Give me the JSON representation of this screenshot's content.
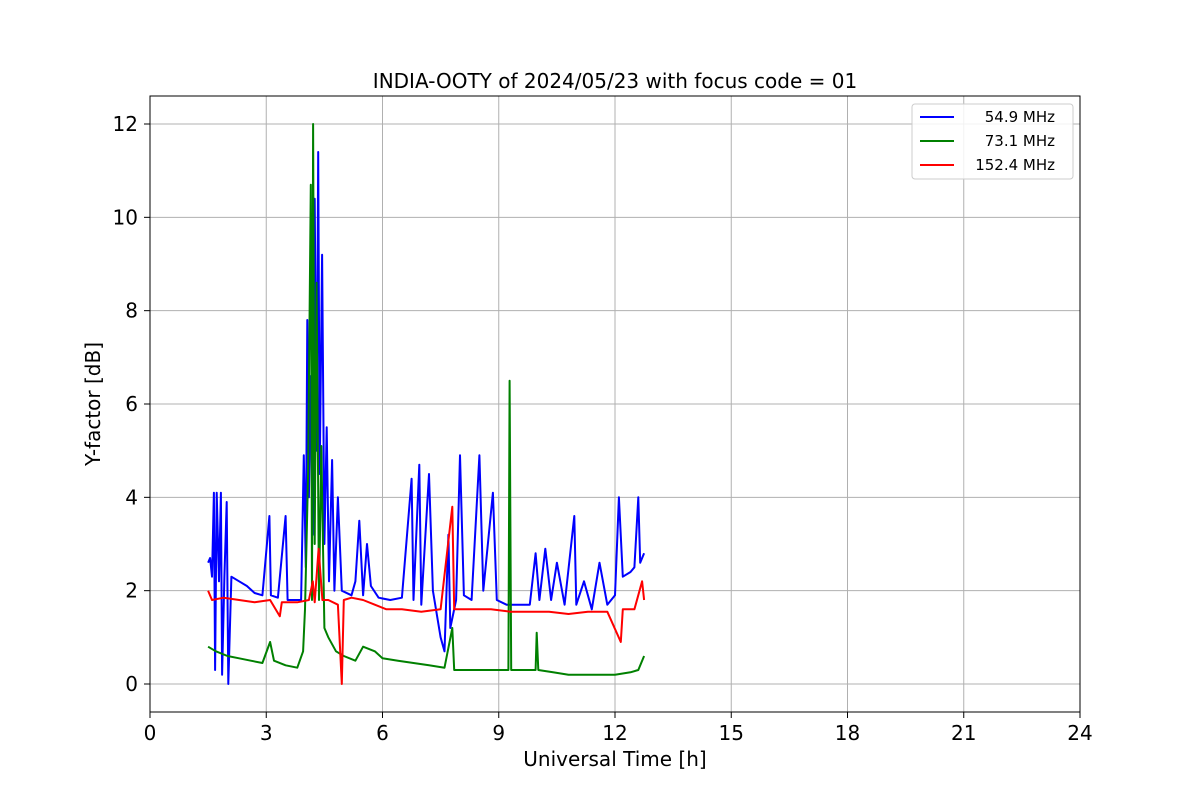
{
  "chart_data": {
    "type": "line",
    "title": "INDIA-OOTY of 2024/05/23 with focus code = 01",
    "xlabel": "Universal Time [h]",
    "ylabel": "Y-factor [dB]",
    "xlim": [
      0,
      24
    ],
    "ylim": [
      -0.6,
      12.6
    ],
    "xticks": [
      0,
      3,
      6,
      9,
      12,
      15,
      18,
      21,
      24
    ],
    "yticks": [
      0,
      2,
      4,
      6,
      8,
      10,
      12
    ],
    "grid": true,
    "legend_position": "top-right",
    "series": [
      {
        "name": "54.9 MHz",
        "color": "#0000ff",
        "points": [
          [
            1.5,
            2.6
          ],
          [
            1.55,
            2.7
          ],
          [
            1.6,
            2.3
          ],
          [
            1.65,
            4.1
          ],
          [
            1.68,
            0.3
          ],
          [
            1.72,
            4.1
          ],
          [
            1.78,
            2.2
          ],
          [
            1.83,
            4.1
          ],
          [
            1.86,
            0.2
          ],
          [
            1.92,
            2.3
          ],
          [
            1.98,
            3.9
          ],
          [
            2.02,
            0.0
          ],
          [
            2.1,
            2.3
          ],
          [
            2.3,
            2.2
          ],
          [
            2.5,
            2.1
          ],
          [
            2.7,
            1.95
          ],
          [
            2.9,
            1.9
          ],
          [
            3.08,
            3.6
          ],
          [
            3.12,
            1.9
          ],
          [
            3.3,
            1.85
          ],
          [
            3.5,
            3.6
          ],
          [
            3.55,
            1.8
          ],
          [
            3.7,
            1.8
          ],
          [
            3.9,
            1.8
          ],
          [
            3.97,
            4.9
          ],
          [
            4.02,
            2.5
          ],
          [
            4.06,
            7.8
          ],
          [
            4.1,
            4.0
          ],
          [
            4.15,
            6.6
          ],
          [
            4.2,
            3.2
          ],
          [
            4.25,
            10.4
          ],
          [
            4.3,
            5.0
          ],
          [
            4.34,
            11.4
          ],
          [
            4.38,
            4.5
          ],
          [
            4.44,
            9.2
          ],
          [
            4.5,
            3.0
          ],
          [
            4.56,
            5.5
          ],
          [
            4.62,
            2.2
          ],
          [
            4.7,
            4.8
          ],
          [
            4.76,
            2.0
          ],
          [
            4.85,
            4.0
          ],
          [
            4.95,
            2.0
          ],
          [
            5.2,
            1.9
          ],
          [
            5.3,
            2.2
          ],
          [
            5.4,
            3.5
          ],
          [
            5.5,
            1.9
          ],
          [
            5.6,
            3.0
          ],
          [
            5.7,
            2.1
          ],
          [
            5.9,
            1.85
          ],
          [
            6.2,
            1.8
          ],
          [
            6.5,
            1.85
          ],
          [
            6.75,
            4.4
          ],
          [
            6.8,
            1.8
          ],
          [
            6.95,
            4.7
          ],
          [
            7.0,
            1.7
          ],
          [
            7.2,
            4.5
          ],
          [
            7.3,
            2.0
          ],
          [
            7.5,
            1.0
          ],
          [
            7.6,
            0.7
          ],
          [
            7.7,
            3.2
          ],
          [
            7.75,
            1.2
          ],
          [
            7.9,
            1.8
          ],
          [
            8.0,
            4.9
          ],
          [
            8.1,
            1.9
          ],
          [
            8.3,
            1.8
          ],
          [
            8.5,
            4.9
          ],
          [
            8.6,
            2.0
          ],
          [
            8.85,
            4.1
          ],
          [
            8.95,
            1.8
          ],
          [
            9.2,
            1.7
          ],
          [
            9.5,
            1.7
          ],
          [
            9.8,
            1.7
          ],
          [
            9.95,
            2.8
          ],
          [
            10.05,
            1.8
          ],
          [
            10.2,
            2.9
          ],
          [
            10.35,
            1.8
          ],
          [
            10.5,
            2.6
          ],
          [
            10.7,
            1.7
          ],
          [
            10.95,
            3.6
          ],
          [
            11.0,
            1.7
          ],
          [
            11.2,
            2.2
          ],
          [
            11.4,
            1.6
          ],
          [
            11.6,
            2.6
          ],
          [
            11.8,
            1.7
          ],
          [
            12.0,
            1.9
          ],
          [
            12.1,
            4.0
          ],
          [
            12.2,
            2.3
          ],
          [
            12.4,
            2.4
          ],
          [
            12.5,
            2.5
          ],
          [
            12.6,
            4.0
          ],
          [
            12.65,
            2.6
          ],
          [
            12.75,
            2.8
          ]
        ]
      },
      {
        "name": "73.1 MHz",
        "color": "#008000",
        "points": [
          [
            1.5,
            0.8
          ],
          [
            1.7,
            0.7
          ],
          [
            2.0,
            0.6
          ],
          [
            2.3,
            0.55
          ],
          [
            2.6,
            0.5
          ],
          [
            2.9,
            0.45
          ],
          [
            3.1,
            0.9
          ],
          [
            3.2,
            0.5
          ],
          [
            3.5,
            0.4
          ],
          [
            3.8,
            0.35
          ],
          [
            3.95,
            0.7
          ],
          [
            4.0,
            1.6
          ],
          [
            4.08,
            4.5
          ],
          [
            4.15,
            10.7
          ],
          [
            4.18,
            1.8
          ],
          [
            4.21,
            12.0
          ],
          [
            4.25,
            3.0
          ],
          [
            4.3,
            8.6
          ],
          [
            4.36,
            1.8
          ],
          [
            4.42,
            5.1
          ],
          [
            4.5,
            1.2
          ],
          [
            4.6,
            1.0
          ],
          [
            4.8,
            0.7
          ],
          [
            5.0,
            0.6
          ],
          [
            5.3,
            0.5
          ],
          [
            5.5,
            0.8
          ],
          [
            5.8,
            0.7
          ],
          [
            6.0,
            0.55
          ],
          [
            6.4,
            0.5
          ],
          [
            6.8,
            0.45
          ],
          [
            7.2,
            0.4
          ],
          [
            7.6,
            0.35
          ],
          [
            7.8,
            1.2
          ],
          [
            7.85,
            0.3
          ],
          [
            8.2,
            0.3
          ],
          [
            8.6,
            0.3
          ],
          [
            9.0,
            0.3
          ],
          [
            9.25,
            0.3
          ],
          [
            9.28,
            6.5
          ],
          [
            9.32,
            0.3
          ],
          [
            9.6,
            0.3
          ],
          [
            9.95,
            0.3
          ],
          [
            9.98,
            1.1
          ],
          [
            10.02,
            0.3
          ],
          [
            10.4,
            0.25
          ],
          [
            10.8,
            0.2
          ],
          [
            11.2,
            0.2
          ],
          [
            11.6,
            0.2
          ],
          [
            12.0,
            0.2
          ],
          [
            12.4,
            0.25
          ],
          [
            12.6,
            0.3
          ],
          [
            12.75,
            0.6
          ]
        ]
      },
      {
        "name": "152.4 MHz",
        "color": "#ff0000",
        "points": [
          [
            1.5,
            2.0
          ],
          [
            1.6,
            1.8
          ],
          [
            1.9,
            1.85
          ],
          [
            2.3,
            1.8
          ],
          [
            2.7,
            1.75
          ],
          [
            3.1,
            1.8
          ],
          [
            3.35,
            1.45
          ],
          [
            3.4,
            1.75
          ],
          [
            3.8,
            1.75
          ],
          [
            4.1,
            1.8
          ],
          [
            4.2,
            2.2
          ],
          [
            4.25,
            1.75
          ],
          [
            4.35,
            2.9
          ],
          [
            4.45,
            1.8
          ],
          [
            4.6,
            1.8
          ],
          [
            4.85,
            1.7
          ],
          [
            4.95,
            0.0
          ],
          [
            5.0,
            1.8
          ],
          [
            5.2,
            1.85
          ],
          [
            5.5,
            1.8
          ],
          [
            5.8,
            1.7
          ],
          [
            6.1,
            1.6
          ],
          [
            6.5,
            1.6
          ],
          [
            7.0,
            1.55
          ],
          [
            7.5,
            1.6
          ],
          [
            7.8,
            3.8
          ],
          [
            7.85,
            1.6
          ],
          [
            8.3,
            1.6
          ],
          [
            8.8,
            1.6
          ],
          [
            9.3,
            1.55
          ],
          [
            9.8,
            1.55
          ],
          [
            10.3,
            1.55
          ],
          [
            10.8,
            1.5
          ],
          [
            11.3,
            1.55
          ],
          [
            11.8,
            1.55
          ],
          [
            12.15,
            0.9
          ],
          [
            12.2,
            1.6
          ],
          [
            12.5,
            1.6
          ],
          [
            12.7,
            2.2
          ],
          [
            12.75,
            1.8
          ]
        ]
      }
    ]
  }
}
